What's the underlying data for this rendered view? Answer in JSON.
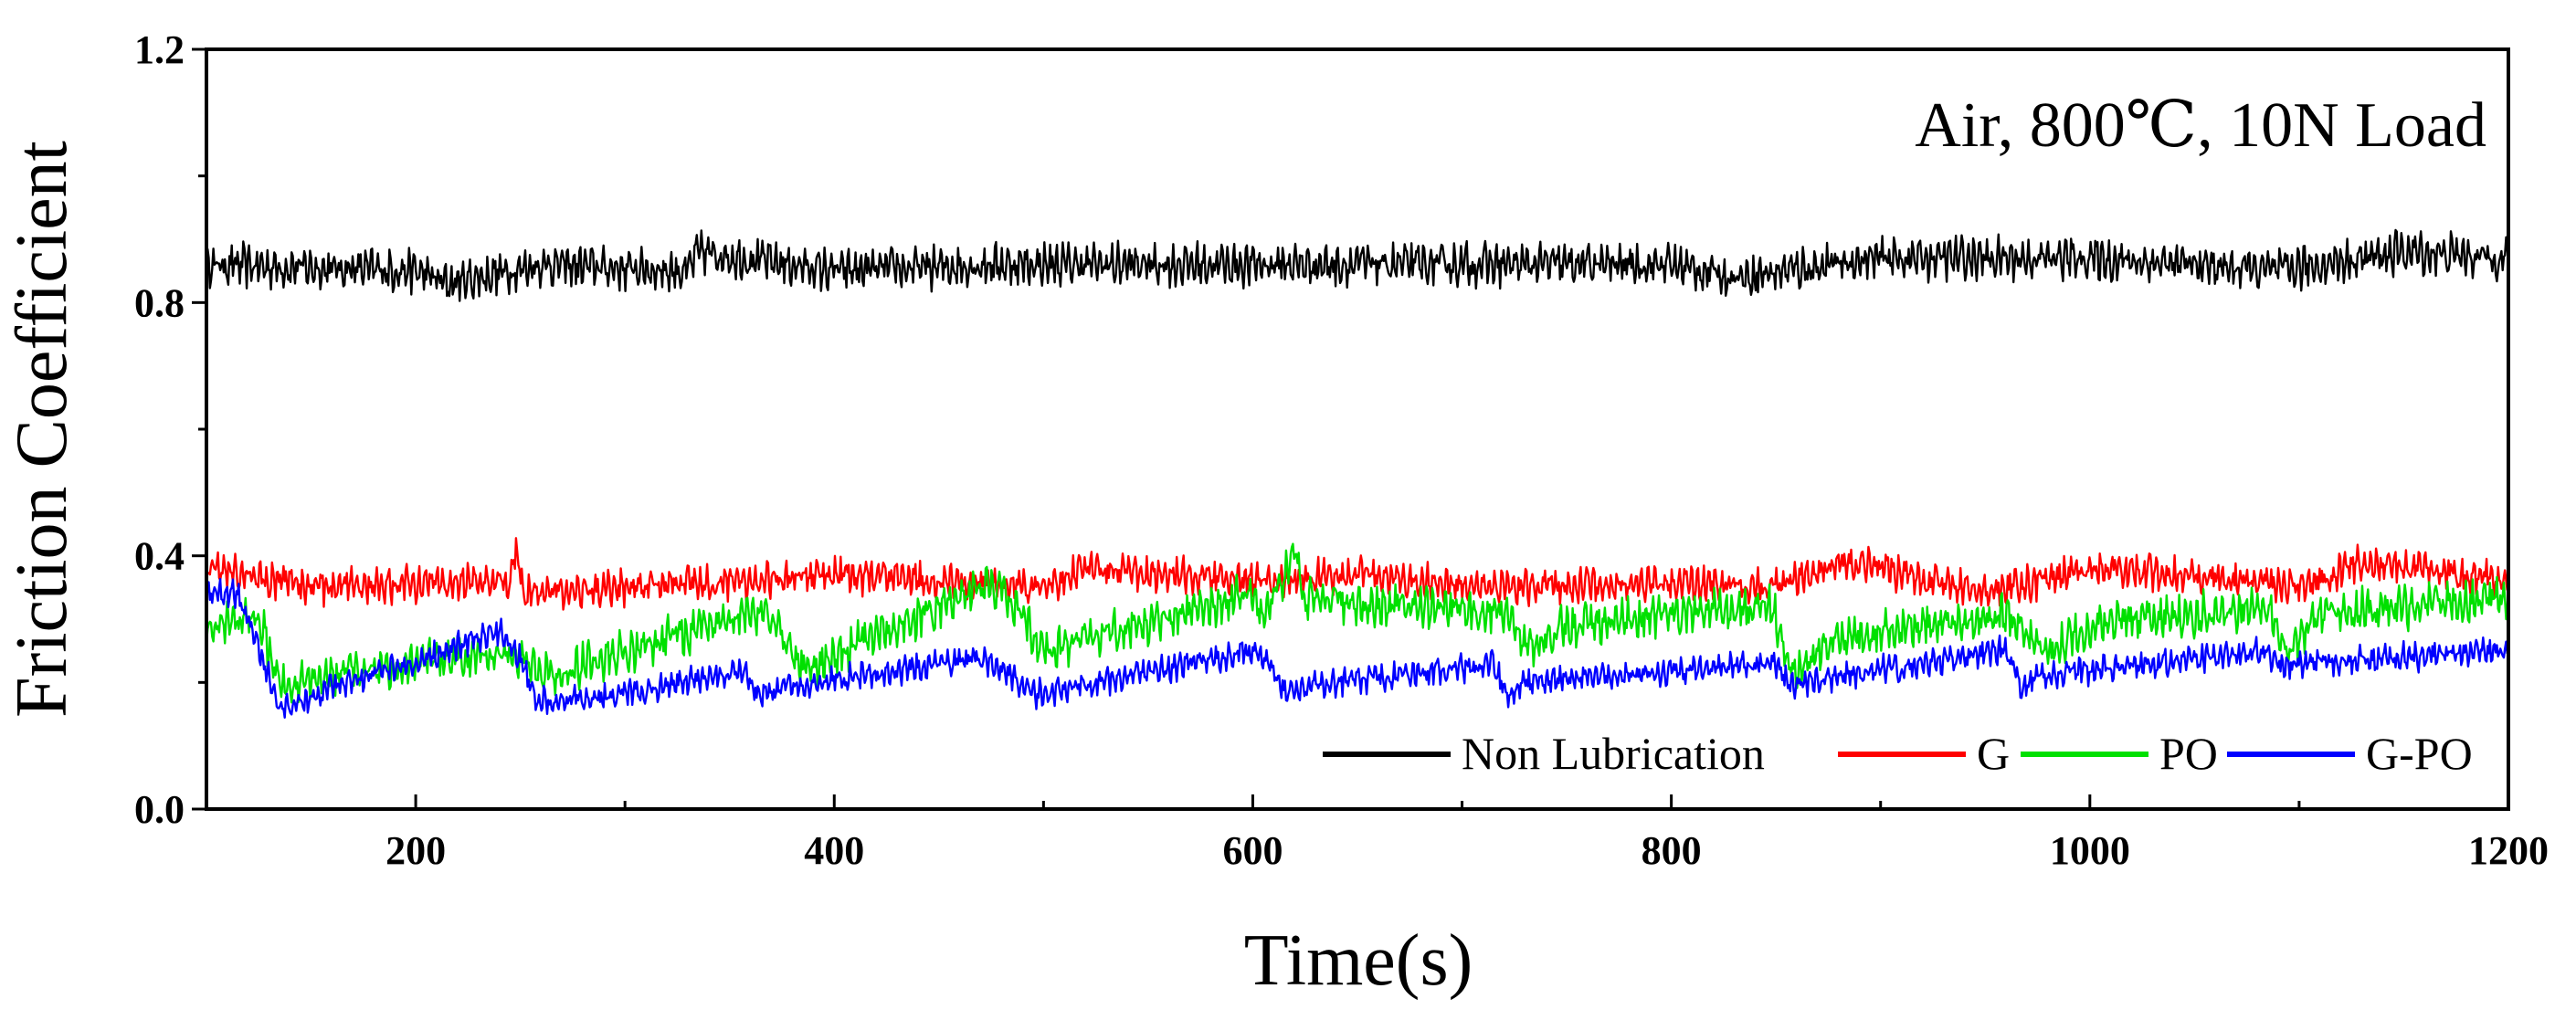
{
  "chart_data": {
    "type": "line",
    "title": "",
    "annotation": "Air, 800℃, 10N Load",
    "xlabel": "Time(s)",
    "ylabel": "Friction Coefficient",
    "xlim": [
      100,
      1200
    ],
    "ylim": [
      0.0,
      1.2
    ],
    "x_ticks": [
      200,
      400,
      600,
      800,
      1000,
      1200
    ],
    "x_tick_labels": [
      "200",
      "400",
      "600",
      "800",
      "1000",
      "1200"
    ],
    "y_ticks": [
      0.0,
      0.4,
      0.8,
      1.2
    ],
    "y_tick_labels": [
      "0.0",
      "0.4",
      "0.8",
      "1.2"
    ],
    "grid": false,
    "legend_position": "bottom-right",
    "series": [
      {
        "name": "Non Lubrication",
        "color": "#000000",
        "noise_amplitude": 0.03,
        "x": [
          100,
          200,
          215,
          260,
          330,
          335,
          400,
          480,
          600,
          700,
          800,
          830,
          900,
          1000,
          1090,
          1150,
          1200
        ],
        "y": [
          0.86,
          0.85,
          0.83,
          0.86,
          0.85,
          0.88,
          0.85,
          0.86,
          0.86,
          0.86,
          0.86,
          0.84,
          0.87,
          0.87,
          0.85,
          0.88,
          0.87
        ]
      },
      {
        "name": "G",
        "color": "#ff0000",
        "noise_amplitude": 0.025,
        "x": [
          100,
          150,
          245,
          248,
          252,
          300,
          400,
          450,
          500,
          520,
          600,
          650,
          720,
          800,
          850,
          880,
          900,
          950,
          1000,
          1050,
          1100,
          1130,
          1200
        ],
        "y": [
          0.38,
          0.35,
          0.36,
          0.41,
          0.34,
          0.35,
          0.37,
          0.36,
          0.35,
          0.38,
          0.36,
          0.37,
          0.35,
          0.36,
          0.35,
          0.39,
          0.38,
          0.34,
          0.38,
          0.37,
          0.35,
          0.39,
          0.36
        ]
      },
      {
        "name": "PO",
        "color": "#00e000",
        "noise_amplitude": 0.03,
        "x": [
          100,
          125,
          135,
          240,
          255,
          262,
          360,
          370,
          385,
          470,
          480,
          500,
          600,
          605,
          620,
          625,
          722,
          732,
          750,
          848,
          858,
          880,
          960,
          980,
          1000,
          1085,
          1095,
          1110,
          1200
        ],
        "y": [
          0.29,
          0.31,
          0.2,
          0.25,
          0.23,
          0.21,
          0.31,
          0.3,
          0.22,
          0.35,
          0.35,
          0.25,
          0.34,
          0.3,
          0.4,
          0.33,
          0.31,
          0.25,
          0.29,
          0.32,
          0.21,
          0.27,
          0.31,
          0.25,
          0.29,
          0.32,
          0.24,
          0.31,
          0.33
        ]
      },
      {
        "name": "G-PO",
        "color": "#0000ff",
        "noise_amplitude": 0.02,
        "x": [
          100,
          115,
          135,
          142,
          160,
          240,
          250,
          258,
          300,
          355,
          365,
          375,
          470,
          480,
          495,
          600,
          605,
          615,
          715,
          722,
          730,
          850,
          855,
          862,
          960,
          968,
          975,
          1085,
          1090,
          1098,
          1200
        ],
        "y": [
          0.34,
          0.34,
          0.16,
          0.16,
          0.19,
          0.28,
          0.24,
          0.17,
          0.18,
          0.22,
          0.18,
          0.19,
          0.24,
          0.22,
          0.18,
          0.25,
          0.24,
          0.19,
          0.23,
          0.18,
          0.2,
          0.23,
          0.2,
          0.2,
          0.25,
          0.19,
          0.21,
          0.25,
          0.22,
          0.23,
          0.25
        ]
      }
    ]
  }
}
